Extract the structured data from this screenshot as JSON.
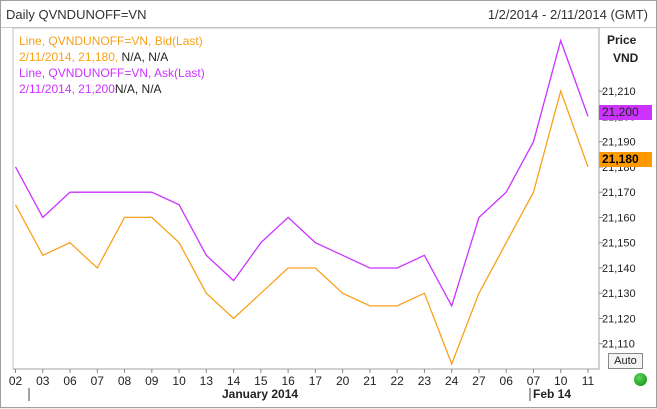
{
  "header": {
    "title": "Daily QVNDUNOFF=VN",
    "date_range": "1/2/2014 - 2/11/2014 (GMT)"
  },
  "legend": {
    "bid_series": "Line, QVNDUNOFF=VN, Bid(Last)",
    "bid_value": "2/11/2014, 21,180,",
    "bid_na": " N/A, N/A",
    "ask_series": "Line, QVNDUNOFF=VN, Ask(Last)",
    "ask_value": "2/11/2014, 21,200",
    "ask_na": "N/A, N/A"
  },
  "axis": {
    "price_label": "Price",
    "unit_label": "VND",
    "month_labels": [
      "January 2014",
      "Feb 14"
    ]
  },
  "last_values": {
    "ask": "21,200",
    "bid": "21,180"
  },
  "controls": {
    "auto_label": "Auto"
  },
  "colors": {
    "bid": "#f7a21b",
    "ask": "#cc33ff",
    "ask_tag_bg": "#cc33ff",
    "bid_tag_bg": "#ff9900",
    "grid": "#d0d0d0"
  },
  "chart_data": {
    "type": "line",
    "categories": [
      "02",
      "03",
      "06",
      "07",
      "08",
      "09",
      "10",
      "13",
      "14",
      "15",
      "16",
      "17",
      "20",
      "21",
      "22",
      "23",
      "24",
      "27",
      "06",
      "07",
      "10",
      "11"
    ],
    "series": [
      {
        "name": "Bid(Last)",
        "values": [
          21165,
          21145,
          21150,
          21140,
          21160,
          21160,
          21150,
          21130,
          21120,
          21130,
          21140,
          21140,
          21130,
          21125,
          21125,
          21130,
          21102,
          21130,
          21150,
          21170,
          21210,
          21180
        ]
      },
      {
        "name": "Ask(Last)",
        "values": [
          21180,
          21160,
          21170,
          21170,
          21170,
          21170,
          21165,
          21145,
          21135,
          21150,
          21160,
          21150,
          21145,
          21140,
          21140,
          21145,
          21125,
          21160,
          21170,
          21190,
          21230,
          21200
        ]
      }
    ],
    "y_ticks": [
      "21,110",
      "21,120",
      "21,130",
      "21,140",
      "21,150",
      "21,160",
      "21,170",
      "21,180",
      "21,190",
      "21,200",
      "21,210"
    ],
    "ylim": [
      21100,
      21235
    ],
    "ylabel": "Price VND",
    "grid": true
  }
}
